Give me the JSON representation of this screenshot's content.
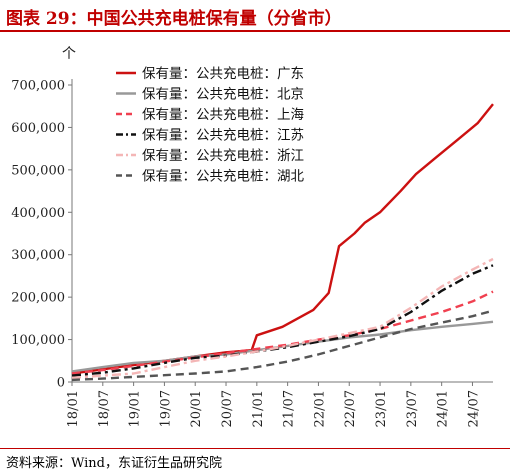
{
  "header": {
    "title": "图表 29：中国公共充电桩保有量（分省市）",
    "title_color": "#c00000"
  },
  "footer": {
    "source": "资料来源：Wind，东证衍生品研究院"
  },
  "chart_data": {
    "type": "line",
    "ylabel": "个",
    "ylim": [
      0,
      700000
    ],
    "yticks": [
      0,
      100000,
      200000,
      300000,
      400000,
      500000,
      600000,
      700000
    ],
    "ytick_labels": [
      "0",
      "100,000",
      "200,000",
      "300,000",
      "400,000",
      "500,000",
      "600,000",
      "700,000"
    ],
    "x_tick_labels": [
      "18/01",
      "18/07",
      "19/01",
      "19/07",
      "20/01",
      "20/07",
      "21/01",
      "21/07",
      "22/01",
      "22/07",
      "23/01",
      "23/07",
      "24/01",
      "24/07"
    ],
    "x_start": "18/01",
    "x_end": "24/11",
    "grid": false,
    "legend_position": "top-left",
    "series": [
      {
        "name": "保有量：公共充电桩：广东",
        "color": "#cc1111",
        "dash": "solid",
        "points": [
          [
            "18/01",
            20000
          ],
          [
            "18/07",
            30000
          ],
          [
            "19/01",
            40000
          ],
          [
            "19/07",
            50000
          ],
          [
            "20/01",
            60000
          ],
          [
            "20/07",
            70000
          ],
          [
            "20/12",
            75000
          ],
          [
            "21/01",
            110000
          ],
          [
            "21/06",
            130000
          ],
          [
            "21/12",
            170000
          ],
          [
            "22/03",
            210000
          ],
          [
            "22/05",
            320000
          ],
          [
            "22/08",
            350000
          ],
          [
            "22/10",
            375000
          ],
          [
            "23/01",
            400000
          ],
          [
            "23/05",
            450000
          ],
          [
            "23/08",
            490000
          ],
          [
            "23/12",
            530000
          ],
          [
            "24/04",
            570000
          ],
          [
            "24/08",
            610000
          ],
          [
            "24/11",
            655000
          ]
        ]
      },
      {
        "name": "保有量：公共充电桩：北京",
        "color": "#999999",
        "dash": "solid",
        "points": [
          [
            "18/01",
            25000
          ],
          [
            "18/07",
            35000
          ],
          [
            "19/01",
            45000
          ],
          [
            "19/07",
            50000
          ],
          [
            "20/01",
            60000
          ],
          [
            "20/07",
            65000
          ],
          [
            "21/01",
            75000
          ],
          [
            "21/07",
            85000
          ],
          [
            "22/01",
            95000
          ],
          [
            "22/07",
            105000
          ],
          [
            "23/01",
            112000
          ],
          [
            "23/07",
            122000
          ],
          [
            "24/01",
            130000
          ],
          [
            "24/07",
            137000
          ],
          [
            "24/11",
            142000
          ]
        ]
      },
      {
        "name": "保有量：公共充电桩：上海",
        "color": "#f04050",
        "dash": "dash",
        "points": [
          [
            "18/01",
            20000
          ],
          [
            "18/07",
            28000
          ],
          [
            "19/01",
            38000
          ],
          [
            "19/07",
            48000
          ],
          [
            "20/01",
            58000
          ],
          [
            "20/07",
            68000
          ],
          [
            "21/01",
            78000
          ],
          [
            "21/07",
            88000
          ],
          [
            "22/01",
            100000
          ],
          [
            "22/07",
            110000
          ],
          [
            "23/01",
            125000
          ],
          [
            "23/07",
            145000
          ],
          [
            "24/01",
            165000
          ],
          [
            "24/07",
            190000
          ],
          [
            "24/11",
            213000
          ]
        ]
      },
      {
        "name": "保有量：公共充电桩：江苏",
        "color": "#111111",
        "dash": "dashdot",
        "points": [
          [
            "18/01",
            15000
          ],
          [
            "18/07",
            22000
          ],
          [
            "19/01",
            32000
          ],
          [
            "19/07",
            45000
          ],
          [
            "20/01",
            57000
          ],
          [
            "20/07",
            62000
          ],
          [
            "21/01",
            72000
          ],
          [
            "21/07",
            82000
          ],
          [
            "22/01",
            95000
          ],
          [
            "22/07",
            108000
          ],
          [
            "23/01",
            125000
          ],
          [
            "23/07",
            165000
          ],
          [
            "24/01",
            215000
          ],
          [
            "24/07",
            255000
          ],
          [
            "24/11",
            275000
          ]
        ]
      },
      {
        "name": "保有量：公共充电桩：浙江",
        "color": "#f4b6b6",
        "dash": "dashdot",
        "points": [
          [
            "18/01",
            10000
          ],
          [
            "18/07",
            15000
          ],
          [
            "19/01",
            20000
          ],
          [
            "19/07",
            35000
          ],
          [
            "20/01",
            50000
          ],
          [
            "20/07",
            60000
          ],
          [
            "21/01",
            72000
          ],
          [
            "21/07",
            85000
          ],
          [
            "22/01",
            100000
          ],
          [
            "22/07",
            115000
          ],
          [
            "23/01",
            130000
          ],
          [
            "23/07",
            175000
          ],
          [
            "24/01",
            225000
          ],
          [
            "24/07",
            265000
          ],
          [
            "24/11",
            290000
          ]
        ]
      },
      {
        "name": "保有量：公共充电桩：湖北",
        "color": "#555555",
        "dash": "dash",
        "points": [
          [
            "18/01",
            5000
          ],
          [
            "18/07",
            8000
          ],
          [
            "19/01",
            12000
          ],
          [
            "19/07",
            16000
          ],
          [
            "20/01",
            20000
          ],
          [
            "20/07",
            25000
          ],
          [
            "21/01",
            35000
          ],
          [
            "21/07",
            48000
          ],
          [
            "22/01",
            65000
          ],
          [
            "22/07",
            85000
          ],
          [
            "23/01",
            105000
          ],
          [
            "23/07",
            125000
          ],
          [
            "24/01",
            140000
          ],
          [
            "24/07",
            155000
          ],
          [
            "24/11",
            168000
          ]
        ]
      }
    ]
  }
}
